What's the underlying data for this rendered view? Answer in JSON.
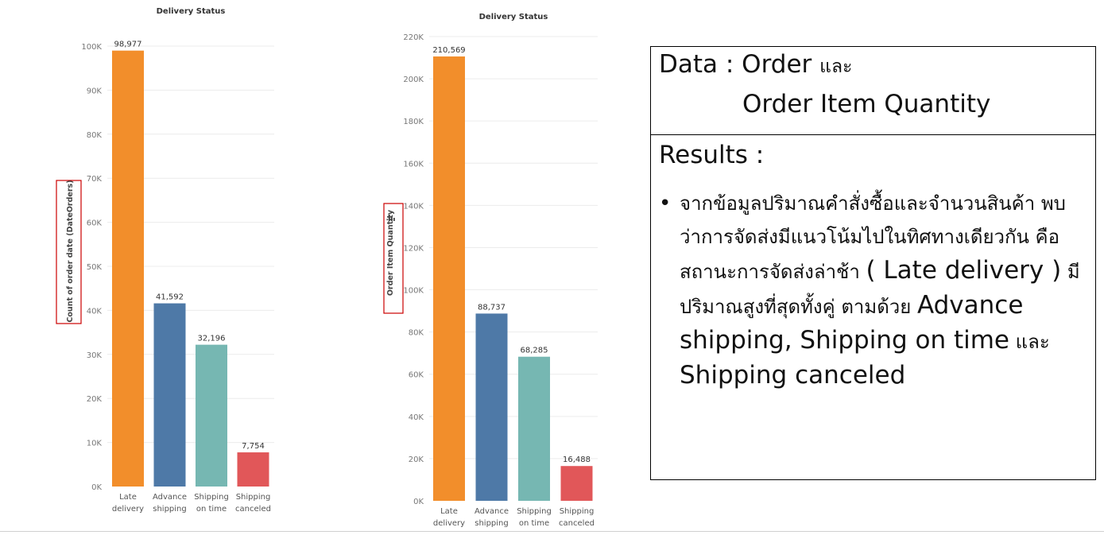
{
  "chart_data": [
    {
      "type": "bar",
      "title": "Delivery Status",
      "categories": [
        [
          "Late",
          "delivery"
        ],
        [
          "Advance",
          "shipping"
        ],
        [
          "Shipping",
          "on time"
        ],
        [
          "Shipping",
          "canceled"
        ]
      ],
      "values": [
        98977,
        41592,
        32196,
        7754
      ],
      "data_labels": [
        "98,977",
        "41,592",
        "32,196",
        "7,754"
      ],
      "ylabel": "Count of order date (DateOrders)",
      "ylim": [
        0,
        100000
      ],
      "yticks": [
        0,
        10000,
        20000,
        30000,
        40000,
        50000,
        60000,
        70000,
        80000,
        90000,
        100000
      ],
      "ytick_labels": [
        "0K",
        "10K",
        "20K",
        "30K",
        "40K",
        "50K",
        "60K",
        "70K",
        "80K",
        "90K",
        "100K"
      ],
      "colors": [
        "#f28e2b",
        "#4e79a7",
        "#76b7b2",
        "#e15759"
      ],
      "ylabel_highlight_color": "#cc0000",
      "grid": true
    },
    {
      "type": "bar",
      "title": "Delivery Status",
      "categories": [
        [
          "Late",
          "delivery"
        ],
        [
          "Advance",
          "shipping"
        ],
        [
          "Shipping",
          "on time"
        ],
        [
          "Shipping",
          "canceled"
        ]
      ],
      "values": [
        210569,
        88737,
        68285,
        16488
      ],
      "data_labels": [
        "210,569",
        "88,737",
        "68,285",
        "16,488"
      ],
      "ylabel": "Order Item Quantity",
      "ylim": [
        0,
        220000
      ],
      "yticks": [
        0,
        20000,
        40000,
        60000,
        80000,
        100000,
        120000,
        140000,
        160000,
        180000,
        200000,
        220000
      ],
      "ytick_labels": [
        "0K",
        "20K",
        "40K",
        "60K",
        "80K",
        "100K",
        "120K",
        "140K",
        "160K",
        "180K",
        "200K",
        "220K"
      ],
      "colors": [
        "#f28e2b",
        "#4e79a7",
        "#76b7b2",
        "#e15759"
      ],
      "ylabel_highlight_color": "#cc0000",
      "grid": true
    }
  ],
  "panel": {
    "data_prefix": "Data : Order ",
    "data_and": "และ",
    "data_line2": "Order Item Quantity",
    "results_label": "Results :",
    "bullet": "•",
    "result_thai_1": "จากข้อมูลปริมาณคำสั่งซื้อและจำนวนสินค้า พบว่าการจัดส่งมีแนวโน้มไปในทิศทางเดียวกัน คือ สถานะการจัดส่งล่าช้า ",
    "result_late": "( Late delivery )",
    "result_thai_2": " มีปริมาณสูงที่สุดทั้งคู่  ตามด้วย ",
    "result_rest_1": "Advance shipping, Shipping on time",
    "result_and": " และ ",
    "result_rest_2": "Shipping canceled"
  }
}
